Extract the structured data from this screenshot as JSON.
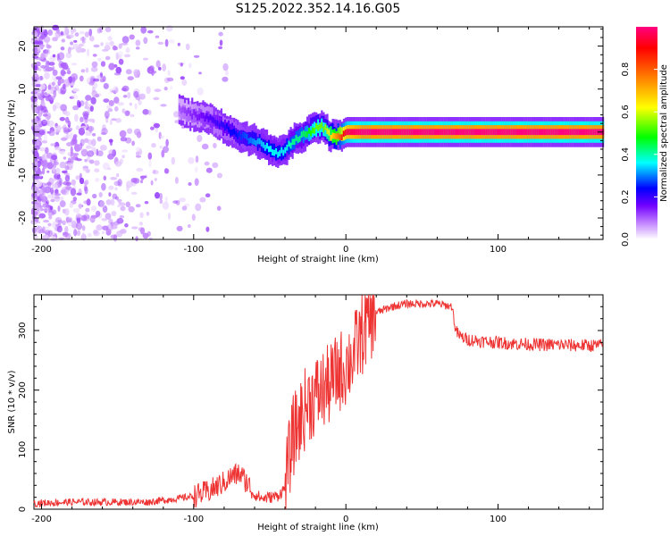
{
  "title": "S125.2022.352.14.16.G05",
  "chart_data": [
    {
      "type": "heatmap",
      "title": "S125.2022.352.14.16.G05",
      "xlabel": "Height of straight line (km)",
      "ylabel": "Frequency (Hz)",
      "xlim": [
        -205,
        169
      ],
      "ylim": [
        -25,
        24.5
      ],
      "x_ticks": [
        -200,
        -100,
        0,
        100
      ],
      "y_ticks": [
        -20,
        -10,
        0,
        10,
        20
      ],
      "grid": false,
      "colorbar": {
        "label": "Normalized spectral amplitude",
        "range": [
          0,
          1
        ],
        "ticks": [
          0.0,
          0.2,
          0.4,
          0.6,
          0.8
        ],
        "colormap": [
          "#ffffff",
          "#c080ff",
          "#7000ff",
          "#0000ff",
          "#00ffff",
          "#00ff00",
          "#ffff00",
          "#ff8000",
          "#ff0000",
          "#ff0080"
        ]
      },
      "ridge": {
        "x": [
          -110,
          -100,
          -90,
          -80,
          -70,
          -60,
          -50,
          -45,
          -40,
          -35,
          -30,
          -25,
          -20,
          -15,
          -10,
          -5,
          0,
          10,
          50,
          100,
          150,
          169
        ],
        "y": [
          5,
          4,
          3,
          1,
          -1,
          -2,
          -4,
          -5,
          -4,
          -2,
          -1,
          0,
          1,
          1,
          -1,
          -1,
          0,
          0,
          0,
          0,
          0,
          0
        ],
        "amplitude": [
          0.15,
          0.2,
          0.25,
          0.3,
          0.35,
          0.4,
          0.45,
          0.45,
          0.45,
          0.5,
          0.5,
          0.55,
          0.6,
          0.6,
          0.7,
          0.8,
          0.95,
          1.0,
          1.0,
          1.0,
          1.0,
          1.0
        ]
      }
    },
    {
      "type": "line",
      "xlabel": "Height of straight line (km)",
      "ylabel": "SNR (10 * v/v)",
      "xlim": [
        -205,
        169
      ],
      "ylim": [
        0,
        360
      ],
      "x_ticks": [
        -200,
        -100,
        0,
        100
      ],
      "y_ticks": [
        0,
        100,
        200,
        300
      ],
      "grid": false,
      "color": "#ee3333",
      "series": [
        {
          "x": [
            -205,
            -180,
            -150,
            -130,
            -110,
            -100,
            -90,
            -80,
            -75,
            -70,
            -65,
            -60,
            -55,
            -50,
            -45,
            -40,
            -35,
            -30,
            -25,
            -20,
            -15,
            -10,
            -5,
            0,
            5,
            10,
            15,
            20,
            30,
            40,
            50,
            60,
            70,
            72,
            75,
            80,
            90,
            100,
            110,
            120,
            130,
            140,
            150,
            160,
            169
          ],
          "y": [
            10,
            12,
            12,
            12,
            18,
            22,
            30,
            45,
            55,
            60,
            45,
            25,
            18,
            20,
            22,
            35,
            120,
            150,
            180,
            190,
            200,
            210,
            230,
            240,
            260,
            290,
            315,
            330,
            340,
            345,
            345,
            345,
            340,
            300,
            290,
            285,
            282,
            280,
            278,
            277,
            276,
            276,
            275,
            275,
            275
          ]
        }
      ]
    }
  ]
}
